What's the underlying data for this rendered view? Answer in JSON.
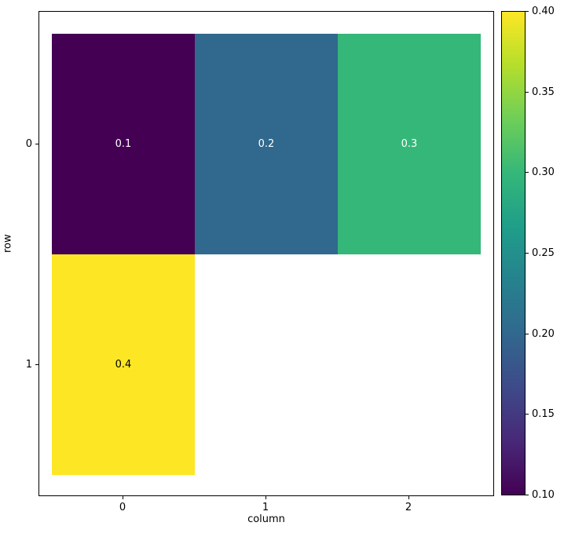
{
  "figure": {
    "background": "#ffffff"
  },
  "chart_data": {
    "type": "heatmap",
    "title": "",
    "xlabel": "column",
    "ylabel": "row",
    "x_ticks": [
      "0",
      "1",
      "2"
    ],
    "y_ticks": [
      "0",
      "1"
    ],
    "rows": [
      "0",
      "1"
    ],
    "columns": [
      "0",
      "1",
      "2"
    ],
    "values": [
      [
        0.1,
        0.2,
        0.3
      ],
      [
        0.4,
        null,
        null
      ]
    ],
    "cells": [
      {
        "row": 0,
        "col": 0,
        "label": "0.1",
        "value": 0.1,
        "color": "#440154",
        "text_color": "#ffffff"
      },
      {
        "row": 0,
        "col": 1,
        "label": "0.2",
        "value": 0.2,
        "color": "#31688e",
        "text_color": "#ffffff"
      },
      {
        "row": 0,
        "col": 2,
        "label": "0.3",
        "value": 0.3,
        "color": "#35b779",
        "text_color": "#ffffff"
      },
      {
        "row": 1,
        "col": 0,
        "label": "0.4",
        "value": 0.4,
        "color": "#fde725",
        "text_color": "#000000"
      }
    ],
    "missing_cell_color": "#ffffff",
    "colormap": "viridis",
    "colorbar": {
      "min": 0.1,
      "max": 0.4,
      "ticks": [
        "0.40",
        "0.35",
        "0.30",
        "0.25",
        "0.20",
        "0.15",
        "0.10"
      ],
      "gradient_stops": [
        "#440154",
        "#482878",
        "#3e4a89",
        "#31688e",
        "#26828e",
        "#1f9e89",
        "#35b779",
        "#6ece58",
        "#b5de2b",
        "#fde725"
      ]
    },
    "grid": false,
    "legend": "none"
  }
}
